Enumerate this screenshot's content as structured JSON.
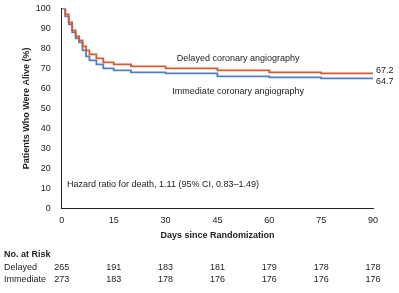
{
  "chart_data": {
    "type": "line",
    "line_style": "step",
    "x_label": "Days since Randomization",
    "y_label": "Patients Who Were Alive (%)",
    "xlim": [
      0,
      90
    ],
    "xticks": [
      0,
      15,
      30,
      45,
      60,
      75,
      90
    ],
    "ylim": [
      0,
      100
    ],
    "yticks": [
      0,
      10,
      20,
      30,
      40,
      50,
      60,
      70,
      80,
      90,
      100
    ],
    "grid": false,
    "annotations": [
      "Hazard ratio for death, 1.11 (95% CI, 0.83–1.49)"
    ],
    "series": [
      {
        "name": "Delayed coronary angiography",
        "color": "#d65a2e",
        "x": [
          0,
          1,
          2,
          3,
          4,
          5,
          6,
          7,
          8,
          10,
          12,
          15,
          20,
          30,
          45,
          60,
          75,
          90
        ],
        "values": [
          100,
          97,
          93,
          89,
          86,
          84,
          81,
          79,
          77,
          75,
          73,
          72,
          71,
          70,
          69,
          68,
          67.5,
          67.2
        ]
      },
      {
        "name": "Immediate coronary angiography",
        "color": "#4f7fc4",
        "x": [
          0,
          1,
          2,
          3,
          4,
          5,
          6,
          7,
          8,
          10,
          12,
          15,
          20,
          30,
          45,
          60,
          75,
          90
        ],
        "values": [
          100,
          96,
          92,
          88,
          85,
          83,
          79,
          76,
          74,
          72,
          70,
          69,
          68,
          67.5,
          66,
          65.5,
          65,
          64.7
        ]
      }
    ],
    "at_risk": {
      "title": "No. at Risk",
      "x": [
        0,
        15,
        30,
        45,
        60,
        75,
        90
      ],
      "rows": [
        {
          "name": "Delayed",
          "values": [
            265,
            191,
            183,
            181,
            179,
            178,
            178
          ]
        },
        {
          "name": "Immediate",
          "values": [
            273,
            183,
            178,
            176,
            176,
            176,
            176
          ]
        }
      ]
    }
  }
}
